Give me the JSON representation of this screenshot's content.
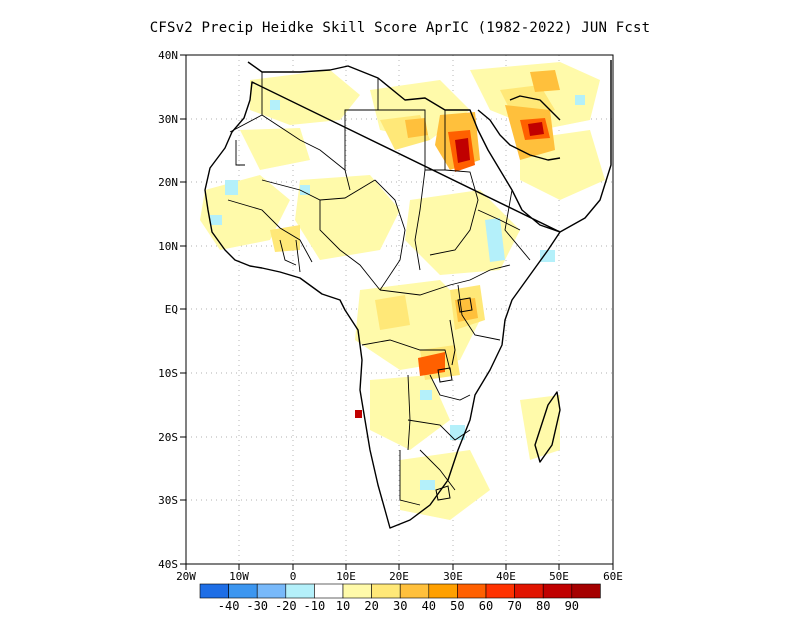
{
  "title": "CFSv2 Precip Heidke Skill Score AprIC (1982-2022) JUN Fcst",
  "lat_labels": [
    "40N",
    "30N",
    "20N",
    "10N",
    "EQ",
    "10S",
    "20S",
    "30S",
    "40S"
  ],
  "lon_labels": [
    "20W",
    "10W",
    "0",
    "10E",
    "20E",
    "30E",
    "40E",
    "50E",
    "60E"
  ],
  "colorbar": {
    "colors": [
      "#1e6ee6",
      "#3c96f0",
      "#78b9fa",
      "#b4f0fa",
      "#ffffff",
      "#fffaaa",
      "#ffe878",
      "#ffc03c",
      "#ffa000",
      "#ff6000",
      "#ff3200",
      "#e11400",
      "#c00000",
      "#a50000"
    ],
    "labels": [
      "-40",
      "-30",
      "-20",
      "-10",
      "10",
      "20",
      "30",
      "40",
      "50",
      "60",
      "70",
      "80",
      "90"
    ]
  }
}
